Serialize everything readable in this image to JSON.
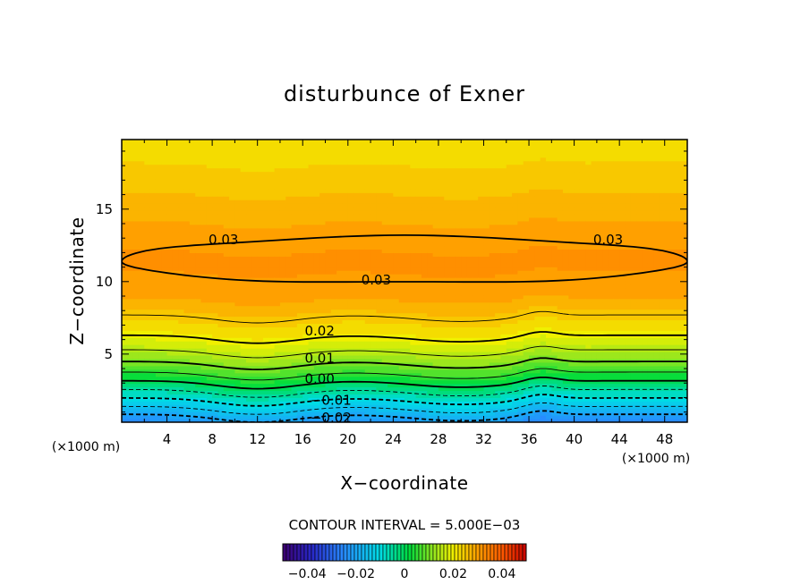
{
  "chart_data": {
    "type": "heatmap",
    "title": "disturbunce of Exner",
    "xlabel": "X−coordinate",
    "ylabel": "Z−coordinate",
    "x_unit": "(×1000 m)",
    "y_unit": "(×1000 m)",
    "xlim": [
      0,
      50
    ],
    "ylim": [
      0.3,
      19.8
    ],
    "x_ticks": [
      "4",
      "8",
      "12",
      "16",
      "20",
      "24",
      "28",
      "32",
      "36",
      "40",
      "44",
      "48"
    ],
    "y_ticks": [
      "5",
      "10",
      "15"
    ],
    "contour_interval_text": "CONTOUR INTERVAL = 5.000E−03",
    "contour_interval": 0.005,
    "contour_labels": [
      {
        "text": "0.03",
        "x": 9,
        "z": 12.9
      },
      {
        "text": "0.03",
        "x": 43,
        "z": 12.9
      },
      {
        "text": "0.03",
        "x": 22.5,
        "z": 10.1
      },
      {
        "text": "0.02",
        "x": 17.5,
        "z": 6.6
      },
      {
        "text": "0.01",
        "x": 17.5,
        "z": 4.7
      },
      {
        "text": "0.00",
        "x": 17.5,
        "z": 3.3
      },
      {
        "text": "−0.01",
        "x": 18.5,
        "z": 1.8
      },
      {
        "text": "−0.02",
        "x": 18.5,
        "z": 0.6
      }
    ],
    "profile_z": [
      0.3,
      1.5,
      2.8,
      4.0,
      5.3,
      6.5,
      8.0,
      9.0,
      10.5,
      11.5,
      12.5,
      14.0,
      16.0,
      18.0,
      19.8
    ],
    "profile_value": [
      -0.025,
      -0.014,
      -0.003,
      0.007,
      0.015,
      0.021,
      0.026,
      0.029,
      0.031,
      0.032,
      0.031,
      0.029,
      0.0265,
      0.024,
      0.022
    ],
    "colorbar": {
      "range": [
        -0.05,
        0.05
      ],
      "tick_labels": [
        "−0.04",
        "−0.02",
        "0",
        "0.02",
        "0.04"
      ],
      "tick_values": [
        -0.04,
        -0.02,
        0,
        0.02,
        0.04
      ]
    }
  }
}
